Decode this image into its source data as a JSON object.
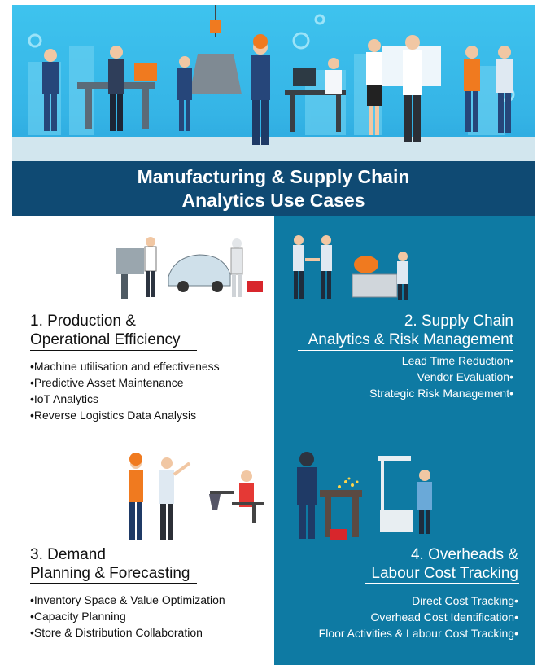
{
  "title": {
    "line1": "Manufacturing & Supply Chain",
    "line2": "Analytics Use Cases"
  },
  "colors": {
    "hero_sky": "#3ec3ee",
    "title_band": "#0f4a73",
    "right_panel": "#0e7aa3",
    "accent_orange": "#f07a1f"
  },
  "sections": [
    {
      "heading_line1": "1. Production &",
      "heading_line2": "Operational Efficiency",
      "items": [
        "•Machine utilisation and effectiveness",
        "•Predictive Asset Maintenance",
        "•IoT Analytics",
        "•Reverse Logistics Data Analysis"
      ],
      "illustration": "machine-operator-and-car-assembly-icon"
    },
    {
      "heading_line1": "2. Supply Chain",
      "heading_line2": "Analytics & Risk Management",
      "items": [
        "Lead Time Reduction•",
        "Vendor Evaluation•",
        "Strategic Risk Management•"
      ],
      "illustration": "handshake-and-machine-operator-icon"
    },
    {
      "heading_line1": "3. Demand",
      "heading_line2": "Planning & Forecasting",
      "items": [
        "•Inventory Space & Value Optimization",
        "•Capacity Planning",
        "•Store & Distribution Collaboration"
      ],
      "illustration": "engineers-and-lab-worker-icon"
    },
    {
      "heading_line1": "4. Overheads &",
      "heading_line2": "Labour Cost Tracking",
      "items": [
        "Direct Cost Tracking•",
        "Overhead Cost Identification•",
        "Floor Activities & Labour Cost Tracking•"
      ],
      "illustration": "welder-and-lab-technician-icon"
    }
  ]
}
